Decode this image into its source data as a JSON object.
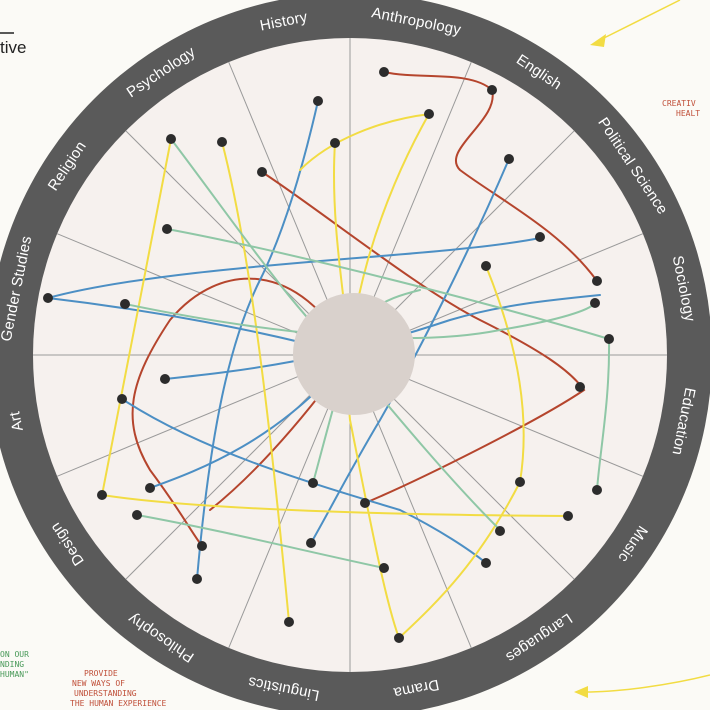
{
  "diagram": {
    "title_fragment": "tive",
    "hub_color": "#d9d1cc",
    "ring_color": "#5a5a5a",
    "face_color": "#f6f1ee",
    "disciplines": [
      "Anthropology",
      "English",
      "Political Science",
      "Sociology",
      "Education",
      "Music",
      "Languages",
      "Drama",
      "Linguistics",
      "Philosophy",
      "Design",
      "Art",
      "Gender Studies",
      "Religion",
      "Psychology",
      "History"
    ],
    "series_colors": {
      "red": "#b5452d",
      "blue": "#4c8fc4",
      "yellow": "#f2dc43",
      "green": "#8fc7a6"
    }
  },
  "annotations": {
    "top_right": [
      "CREATIV",
      "HEALT"
    ],
    "bottom_left": [
      "PROVIDE",
      "NEW WAYS OF",
      "UNDERSTANDING",
      "THE HUMAN EXPERIENCE"
    ],
    "left_edge": [
      "ON OUR",
      "NDING",
      "HUMAN\""
    ]
  }
}
